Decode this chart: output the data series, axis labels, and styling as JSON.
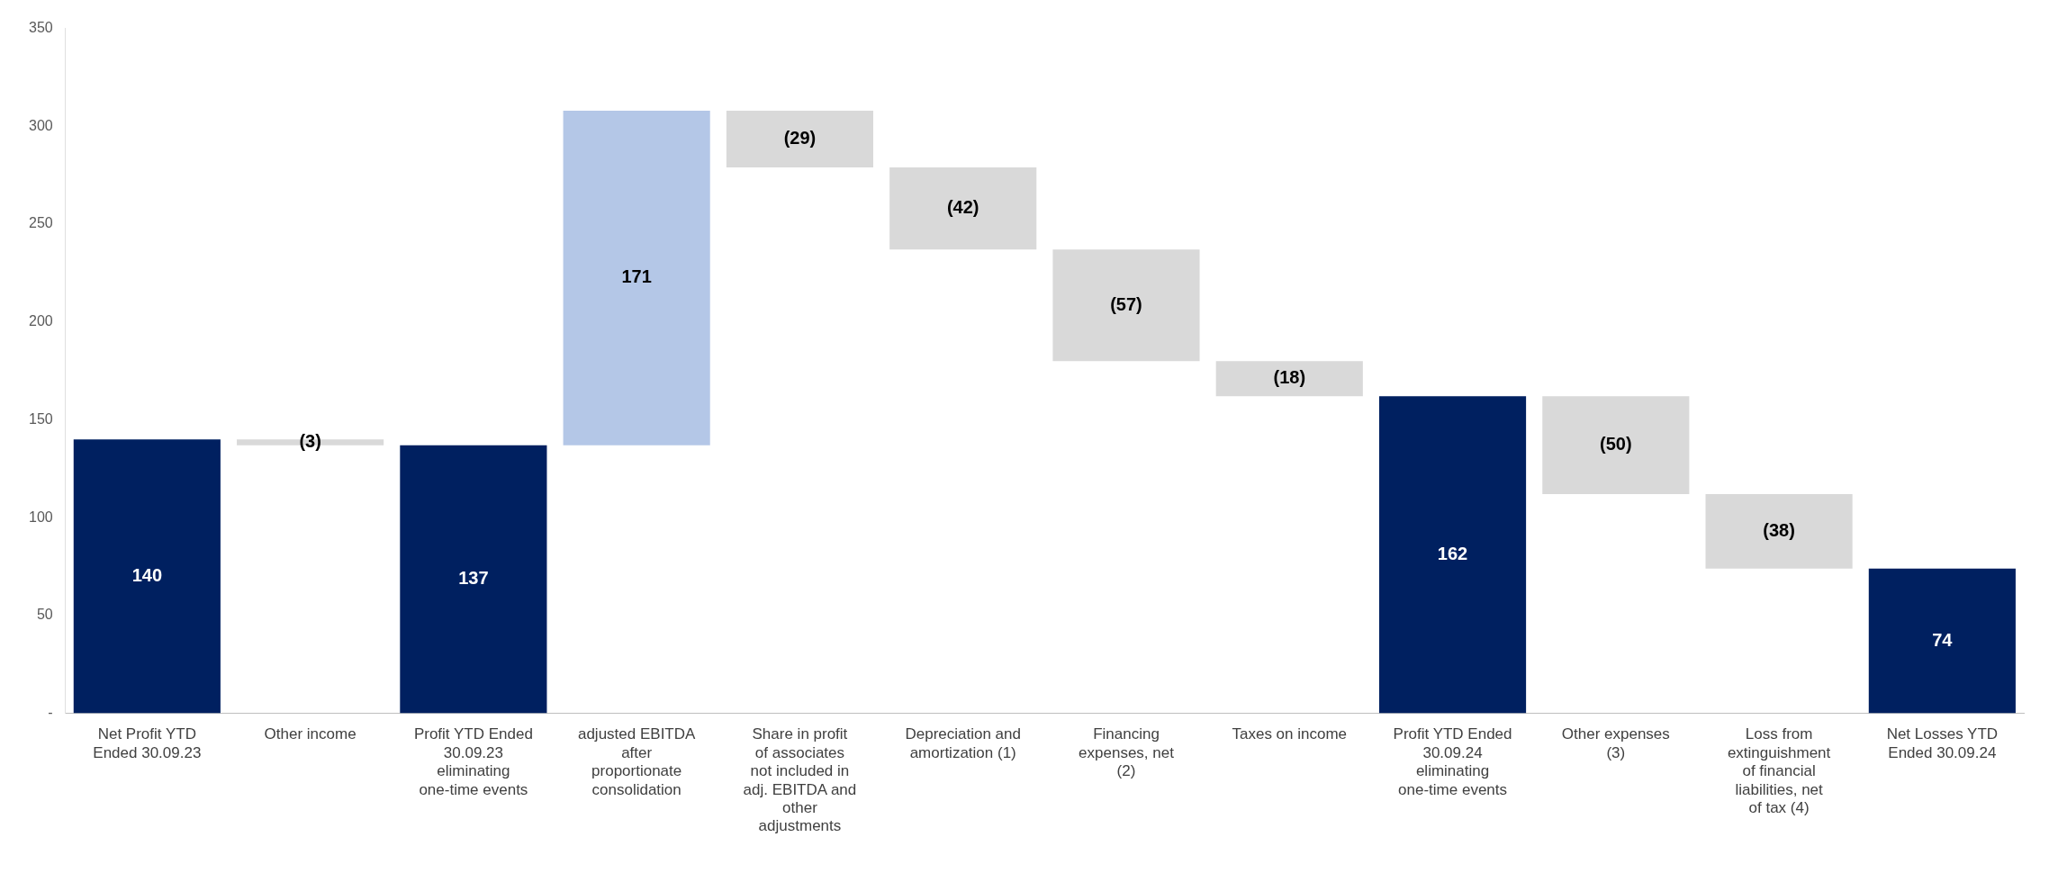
{
  "chart_data": {
    "type": "bar",
    "categories": [
      "Net Profit YTD Ended 30.09.23",
      "Other income",
      "Profit YTD Ended 30.09.23 eliminating one-time events",
      "adjusted EBITDA after proportionate consolidation",
      "Share in profit of associates not included in adj. EBITDA and other adjustments",
      "Depreciation and amortization (1)",
      "Financing expenses, net (2)",
      "Taxes on income",
      "Profit YTD Ended 30.09.24 eliminating one-time events",
      "Other expenses (3)",
      "Loss from extinguishment of financial liabilities, net of tax (4)",
      "Net Losses YTD Ended 30.09.24"
    ],
    "values": [
      140,
      -3,
      137,
      171,
      -29,
      -42,
      -57,
      -18,
      162,
      -50,
      -38,
      74
    ],
    "base": [
      0,
      140,
      0,
      137,
      308,
      279,
      237,
      180,
      0,
      162,
      112,
      0
    ],
    "colors": [
      "#002060",
      "#d9d9d9",
      "#002060",
      "#b4c7e7",
      "#d9d9d9",
      "#d9d9d9",
      "#d9d9d9",
      "#d9d9d9",
      "#002060",
      "#d9d9d9",
      "#d9d9d9",
      "#002060"
    ],
    "value_labels": [
      "140",
      "(3)",
      "137",
      "171",
      "(29)",
      "(42)",
      "(57)",
      "(18)",
      "162",
      "(50)",
      "(38)",
      "74"
    ],
    "ylim": [
      0,
      350
    ],
    "yticks": [
      {
        "value": 0,
        "label": "-"
      },
      50,
      100,
      150,
      200,
      250,
      300,
      350
    ],
    "grid": false,
    "legend": false
  }
}
